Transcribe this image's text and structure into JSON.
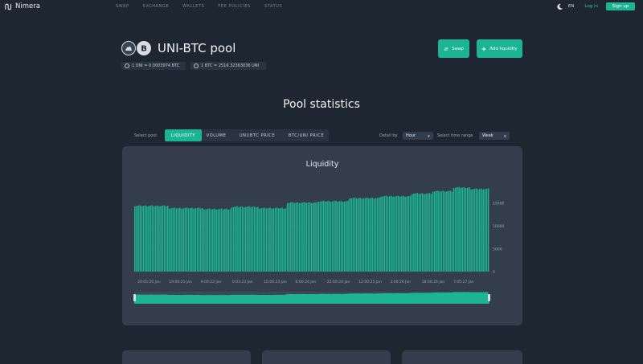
{
  "nav": {
    "brand": "Nimera",
    "menu": [
      "SWAP",
      "EXCHANGE",
      "WALLETS",
      "FEE POLICIES",
      "STATUS"
    ],
    "lang": "EN",
    "login": "Log in",
    "signup": "Sign up",
    "accent": "#1cb593"
  },
  "header": {
    "title": "UNI-BTC pool",
    "rate1": "1 UNI = 0.0003974 BTC",
    "rate2": "1 BTC = 2516.32363036 UNI",
    "swap_label": "Swap",
    "add_label": "Add liquidity"
  },
  "stats": {
    "title": "Pool statistics",
    "select_pool_label": "Select pool:",
    "tabs": [
      "LIQUIDITY",
      "VOLUME",
      "UNI/BTC PRICE",
      "BTC/UNI PRICE"
    ],
    "active_tab": 0,
    "detail_label": "Detail by",
    "detail_value": "Hour",
    "range_label": "Select time range",
    "range_value": "Week"
  },
  "chart_data": {
    "type": "bar",
    "title": "Liquidity",
    "ylim": [
      0,
      15000
    ],
    "yticks": [
      "0",
      "5000",
      "10000",
      "15000"
    ],
    "ytick_values": [
      0,
      5000,
      10000,
      15000
    ],
    "xticks": [
      "20:05:20 Jan",
      "19:00:21 Jan",
      "9:00:22 Jan",
      "0:03:23 Jan",
      "15:00:23 Jan",
      "6:00:24 Jan",
      "22:00:24 Jan",
      "12:00:25 Jan",
      "3:00:26 Jan",
      "18:00:26 Jan",
      "7:05:27 Jan"
    ],
    "segments": [
      {
        "count": 20,
        "value": 14400
      },
      {
        "count": 20,
        "value": 13900
      },
      {
        "count": 16,
        "value": 13700
      },
      {
        "count": 16,
        "value": 14200
      },
      {
        "count": 16,
        "value": 13900
      },
      {
        "count": 18,
        "value": 15100
      },
      {
        "count": 18,
        "value": 15400
      },
      {
        "count": 18,
        "value": 16100
      },
      {
        "count": 18,
        "value": 16500
      },
      {
        "count": 12,
        "value": 17100
      },
      {
        "count": 12,
        "value": 17600
      },
      {
        "count": 10,
        "value": 18400
      },
      {
        "count": 11,
        "value": 18100
      }
    ],
    "series_color": "#1cb593",
    "grid": true,
    "navigator": true
  }
}
